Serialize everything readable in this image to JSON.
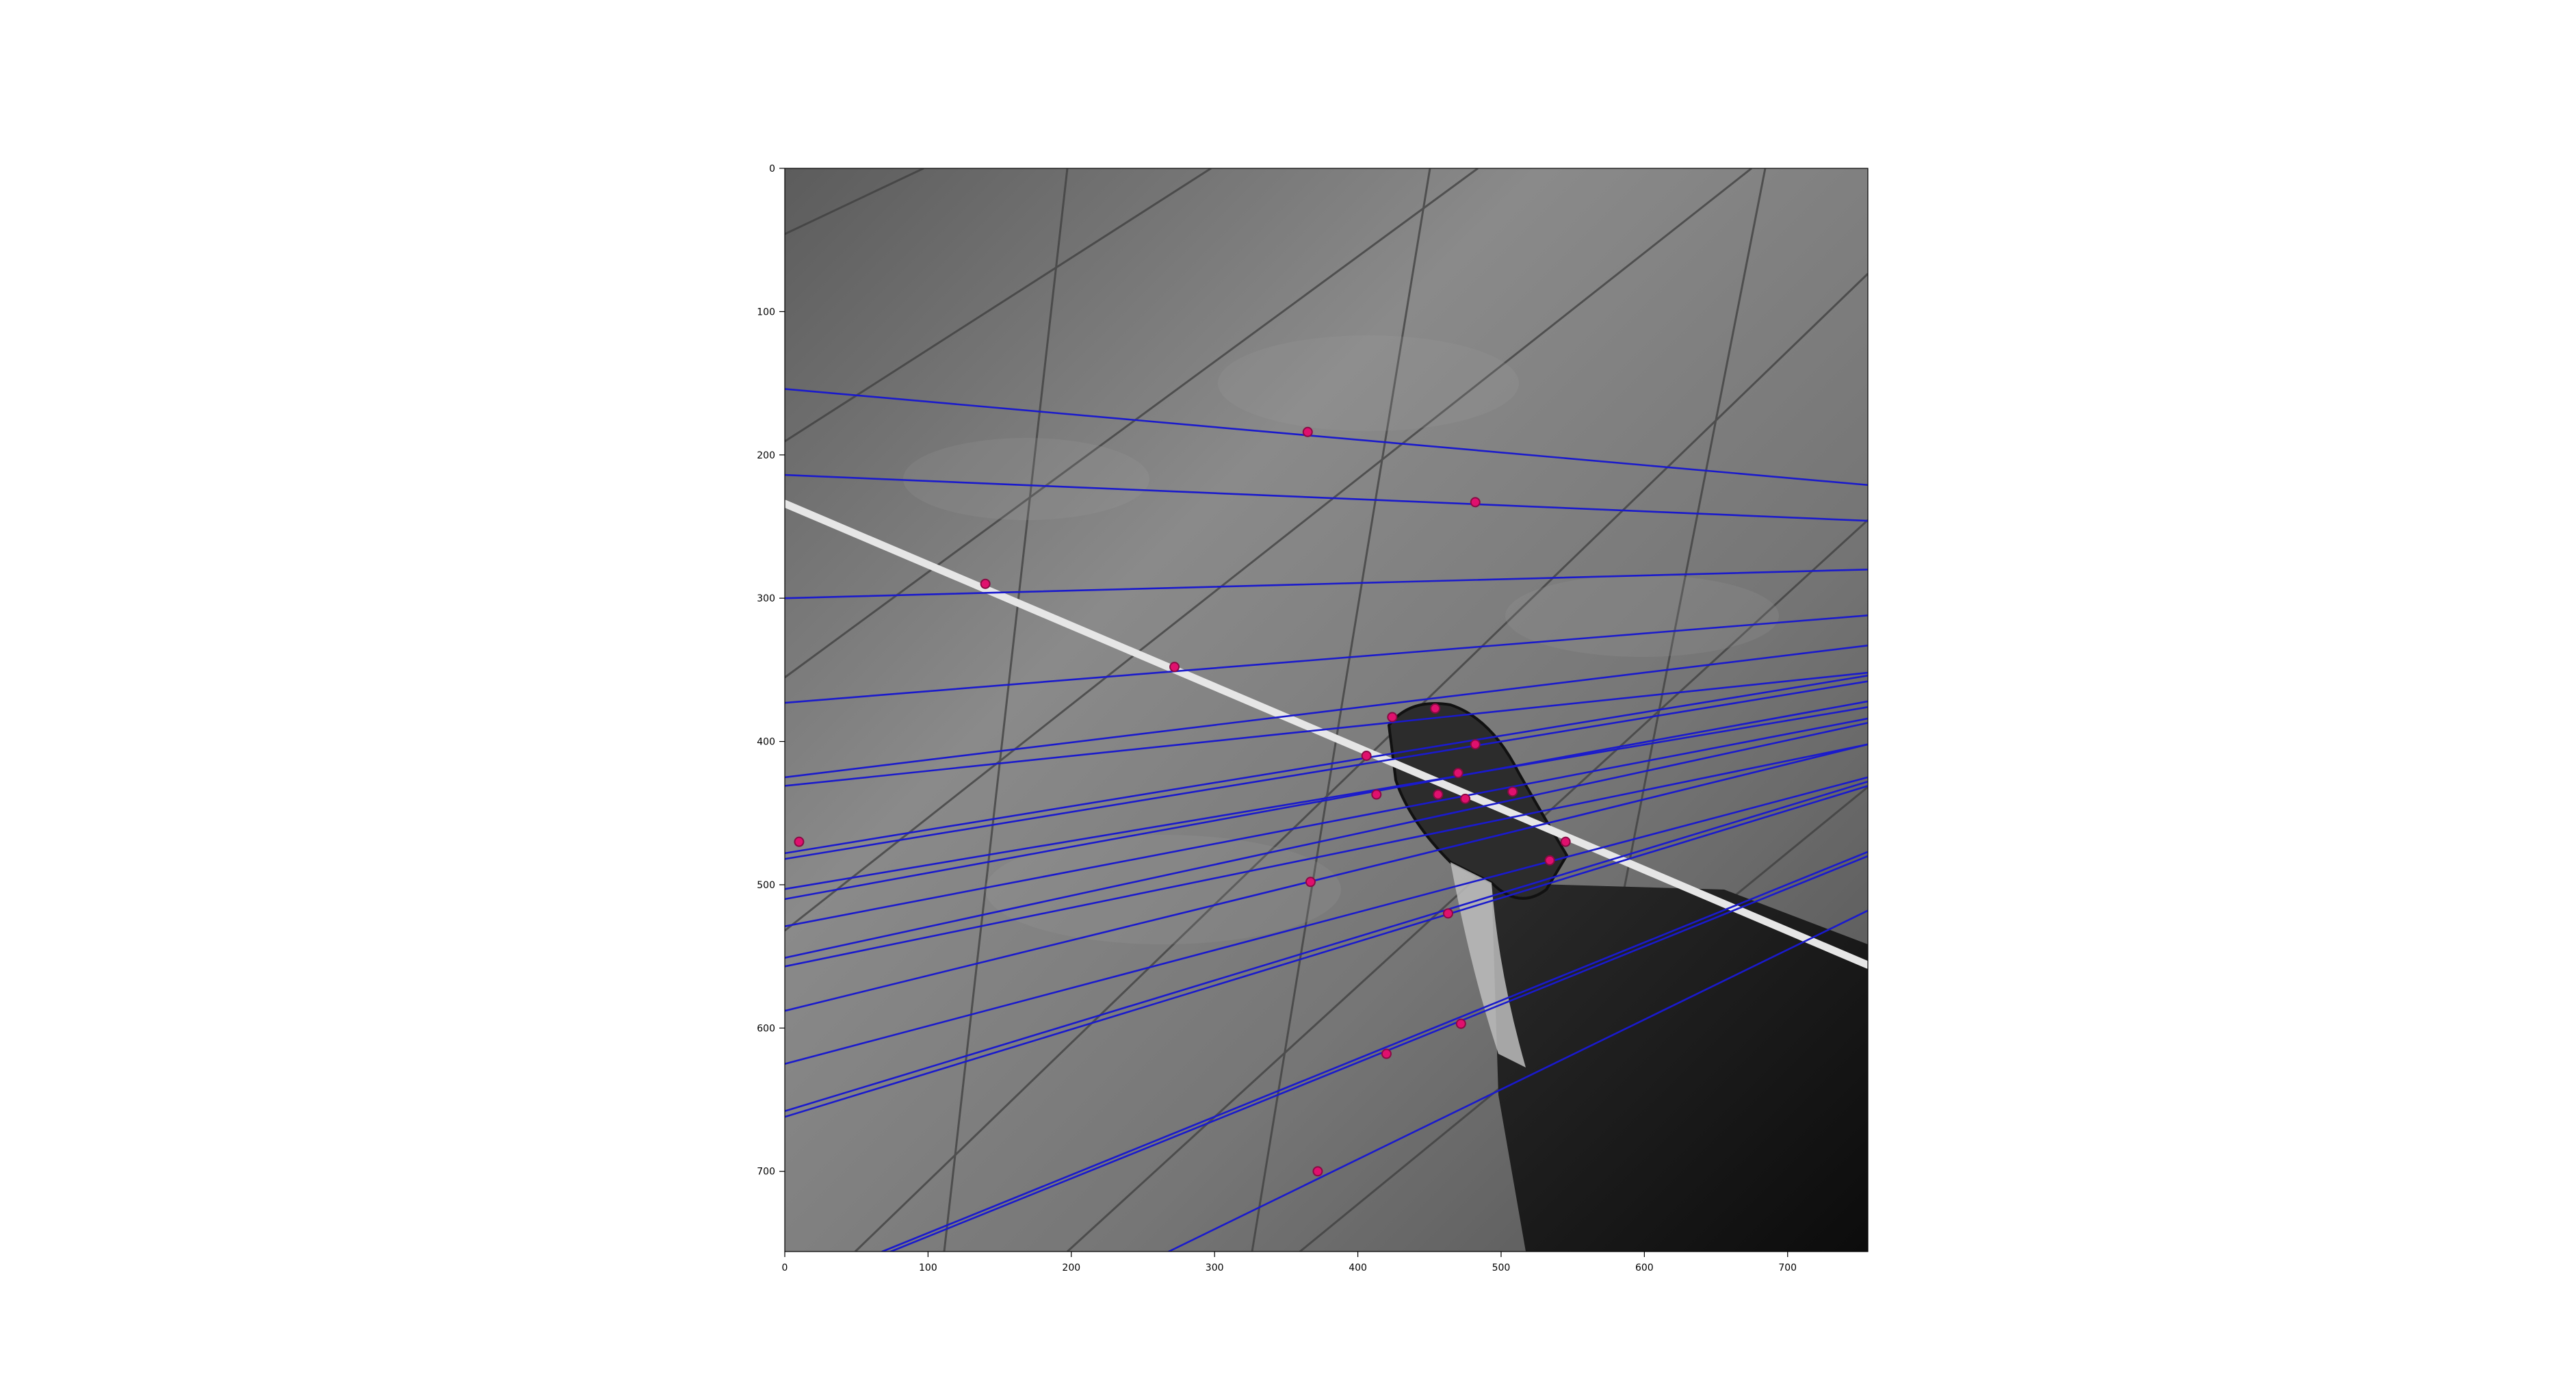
{
  "chart_data": {
    "type": "scatter",
    "title": "",
    "xlabel": "",
    "ylabel": "",
    "xlim": [
      0,
      756
    ],
    "ylim": [
      756,
      0
    ],
    "y_inverted": true,
    "grid": false,
    "legend": "none",
    "x_ticks": [
      0,
      100,
      200,
      300,
      400,
      500,
      600,
      700
    ],
    "y_ticks": [
      0,
      100,
      200,
      300,
      400,
      500,
      600,
      700
    ],
    "x_tick_labels": [
      "0",
      "100",
      "200",
      "300",
      "400",
      "500",
      "600",
      "700"
    ],
    "y_tick_labels": [
      "0",
      "100",
      "200",
      "300",
      "400",
      "500",
      "600",
      "700"
    ],
    "background_image": {
      "description_kind": "grayscale photograph",
      "rope_line": {
        "x": [
          0,
          756
        ],
        "y": [
          234,
          556
        ]
      }
    },
    "colors": {
      "lines": "#1a1acc",
      "points": "#e0106e",
      "point_edge": "#8a0a44",
      "frame": "#000000"
    },
    "keypoints": {
      "x": [
        365,
        482,
        140,
        272,
        406,
        424,
        454,
        413,
        456,
        475,
        470,
        508,
        545,
        534,
        367,
        463,
        472,
        420,
        372,
        10,
        482
      ],
      "y": [
        184,
        233,
        290,
        348,
        410,
        383,
        377,
        437,
        437,
        440,
        422,
        435,
        470,
        483,
        498,
        520,
        597,
        618,
        700,
        470,
        402
      ]
    },
    "epipolar_lines": [
      {
        "x": [
          0,
          756
        ],
        "y": [
          154,
          221
        ]
      },
      {
        "x": [
          0,
          756
        ],
        "y": [
          214,
          246
        ]
      },
      {
        "x": [
          0,
          756
        ],
        "y": [
          300,
          280
        ]
      },
      {
        "x": [
          0,
          756
        ],
        "y": [
          373,
          312
        ]
      },
      {
        "x": [
          0,
          756
        ],
        "y": [
          425,
          333
        ]
      },
      {
        "x": [
          0,
          756
        ],
        "y": [
          431,
          352
        ]
      },
      {
        "x": [
          0,
          756
        ],
        "y": [
          478,
          354
        ]
      },
      {
        "x": [
          0,
          756
        ],
        "y": [
          482,
          358
        ]
      },
      {
        "x": [
          0,
          756
        ],
        "y": [
          503,
          376
        ]
      },
      {
        "x": [
          0,
          756
        ],
        "y": [
          510,
          372
        ]
      },
      {
        "x": [
          0,
          756
        ],
        "y": [
          529,
          384
        ]
      },
      {
        "x": [
          0,
          756
        ],
        "y": [
          551,
          387
        ]
      },
      {
        "x": [
          0,
          756
        ],
        "y": [
          557,
          402
        ]
      },
      {
        "x": [
          0,
          756
        ],
        "y": [
          588,
          402
        ]
      },
      {
        "x": [
          0,
          756
        ],
        "y": [
          625,
          425
        ]
      },
      {
        "x": [
          0,
          756
        ],
        "y": [
          658,
          428
        ]
      },
      {
        "x": [
          0,
          756
        ],
        "y": [
          662,
          431
        ]
      },
      {
        "x": [
          68,
          756
        ],
        "y": [
          756,
          477
        ]
      },
      {
        "x": [
          74,
          756
        ],
        "y": [
          756,
          480
        ]
      },
      {
        "x": [
          268,
          756
        ],
        "y": [
          756,
          518
        ]
      }
    ]
  }
}
